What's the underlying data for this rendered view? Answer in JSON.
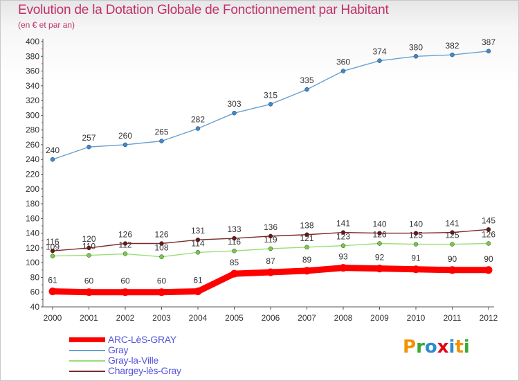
{
  "title": "Evolution de la Dotation Globale de Fonctionnement par Habitant",
  "subtitle": "(en € et par an)",
  "chart_data": {
    "type": "line",
    "title": "Evolution de la Dotation Globale de Fonctionnement par Habitant",
    "subtitle": "(en € et par an)",
    "xlabel": "",
    "ylabel": "",
    "x": [
      2000,
      2001,
      2002,
      2003,
      2004,
      2005,
      2006,
      2007,
      2008,
      2009,
      2010,
      2011,
      2012
    ],
    "ylim": [
      40,
      400
    ],
    "ytick_step": 20,
    "grid": false,
    "legend_position": "bottom-left",
    "series": [
      {
        "name": "ARC-LèS-GRAY",
        "color": "#ff0000",
        "text_color": "#5555dd",
        "emphasis": true,
        "values": [
          61,
          60,
          60,
          60,
          61,
          85,
          87,
          89,
          93,
          92,
          91,
          90,
          90
        ]
      },
      {
        "name": "Gray",
        "color": "#6aa0d0",
        "marker_color": "#3a8bd0",
        "text_color": "#5555dd",
        "values": [
          240,
          257,
          260,
          265,
          282,
          303,
          315,
          335,
          360,
          374,
          380,
          382,
          387
        ]
      },
      {
        "name": "Gray-la-Ville",
        "color": "#99dd77",
        "marker_color": "#77cc44",
        "text_color": "#5555dd",
        "values": [
          109,
          110,
          112,
          108,
          114,
          116,
          119,
          121,
          123,
          126,
          125,
          125,
          126
        ]
      },
      {
        "name": "Chargey-lès-Gray",
        "color": "#7a2a2a",
        "marker_color": "#6a1818",
        "text_color": "#5555dd",
        "values": [
          116,
          120,
          126,
          126,
          131,
          133,
          136,
          138,
          141,
          140,
          140,
          141,
          145
        ]
      }
    ]
  },
  "logo": {
    "letters": [
      "P",
      "r",
      "o",
      "x",
      "i",
      "t",
      "i"
    ]
  }
}
